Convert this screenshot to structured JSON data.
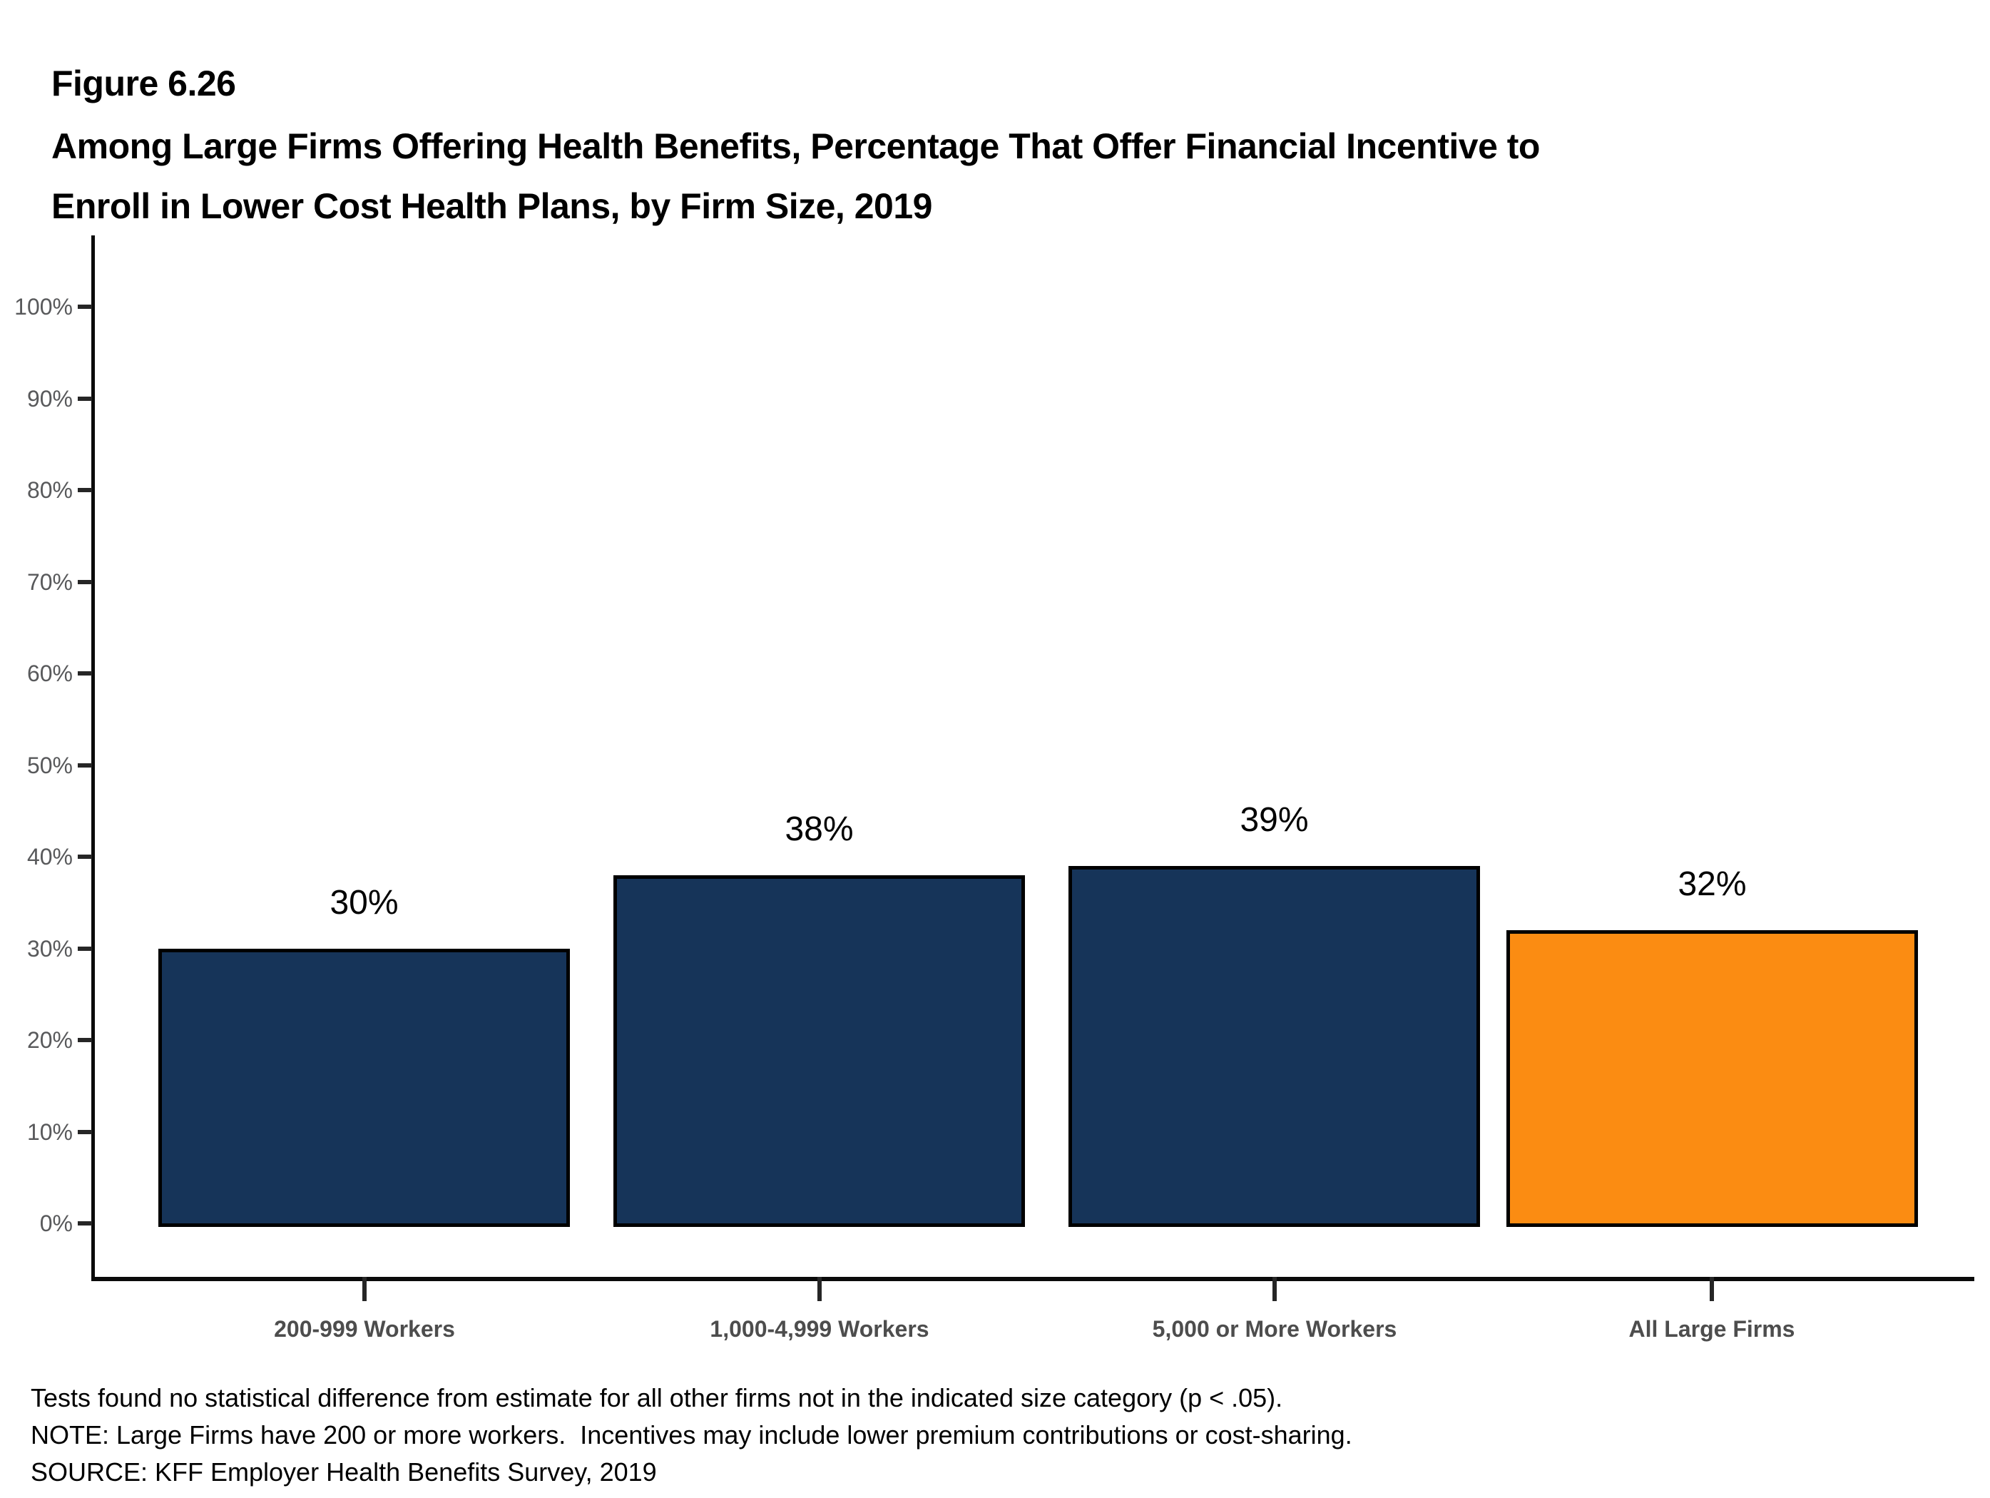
{
  "header": {
    "figure_label": "Figure 6.26",
    "title_lines": [
      "Among Large Firms Offering Health Benefits, Percentage That Offer Financial Incentive to",
      "Enroll in Lower Cost Health Plans, by Firm Size, 2019"
    ]
  },
  "chart_data": {
    "type": "bar",
    "title": "Among Large Firms Offering Health Benefits, Percentage That Offer Financial Incentive to Enroll in Lower Cost Health Plans, by Firm Size, 2019",
    "categories": [
      "200-999 Workers",
      "1,000-4,999 Workers",
      "5,000 or More Workers",
      "All Large Firms"
    ],
    "values": [
      30,
      38,
      39,
      32
    ],
    "value_labels": [
      "30%",
      "38%",
      "39%",
      "32%"
    ],
    "ylim": [
      0,
      100
    ],
    "ytick_interval": 10,
    "yticks": [
      "0%",
      "10%",
      "20%",
      "30%",
      "40%",
      "50%",
      "60%",
      "70%",
      "80%",
      "90%",
      "100%"
    ],
    "xlabel": "",
    "ylabel": "",
    "grid": false,
    "legend": false,
    "highlight_index": 3,
    "highlight_category": "All Large Firms",
    "colors": {
      "bar_default": "#163459",
      "bar_highlight": "#FB8C12",
      "bar_border": "#000000",
      "tick_label": "#58595b",
      "category_label": "#4d4d4d"
    }
  },
  "footnotes": [
    "Tests found no statistical difference from estimate for all other firms not in the indicated size category (p < .05).",
    "NOTE: Large Firms have 200 or more workers.  Incentives may include lower premium contributions or cost-sharing.",
    "SOURCE: KFF Employer Health Benefits Survey, 2019"
  ]
}
